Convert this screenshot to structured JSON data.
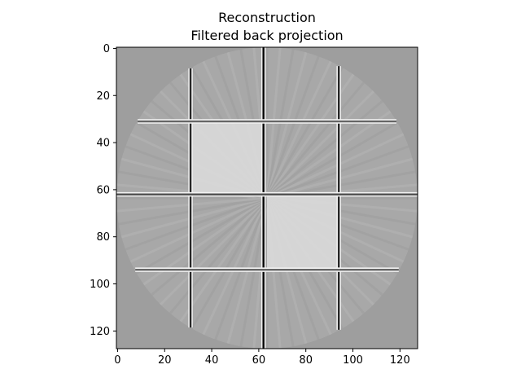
{
  "chart_data": {
    "type": "heatmap",
    "title_line1": "Reconstruction",
    "title_line2": "Filtered back projection",
    "xlabel": "",
    "ylabel": "",
    "xlim": [
      0,
      128
    ],
    "ylim": [
      128,
      0
    ],
    "x_ticks": [
      0,
      20,
      40,
      60,
      80,
      100,
      120
    ],
    "y_ticks": [
      0,
      20,
      40,
      60,
      80,
      100,
      120
    ],
    "colormap": "gray",
    "background_value": 0.62,
    "circle_fill_value": 0.66,
    "image_size": [
      128,
      128
    ],
    "regions": [
      {
        "name": "upper-left-bright-square",
        "x0": 32,
        "x1": 63,
        "y0": 31,
        "y1": 62,
        "value": 0.85
      },
      {
        "name": "lower-right-bright-square",
        "x0": 64,
        "x1": 95,
        "y0": 63,
        "y1": 94,
        "value": 0.85
      }
    ],
    "streak_lines": [
      {
        "orientation": "vertical",
        "at": 62.5,
        "from": 0,
        "to": 128,
        "value": 0.02
      },
      {
        "orientation": "vertical",
        "at": 31.5,
        "from": 9,
        "to": 119,
        "value": 0.15
      },
      {
        "orientation": "vertical",
        "at": 94.5,
        "from": 8,
        "to": 120,
        "value": 0.15
      },
      {
        "orientation": "horizontal",
        "at": 62.5,
        "from": 0,
        "to": 128,
        "value": 0.3
      },
      {
        "orientation": "horizontal",
        "at": 31.5,
        "from": 9,
        "to": 119,
        "value": 0.4
      },
      {
        "orientation": "horizontal",
        "at": 94.5,
        "from": 8,
        "to": 120,
        "value": 0.4
      }
    ]
  }
}
